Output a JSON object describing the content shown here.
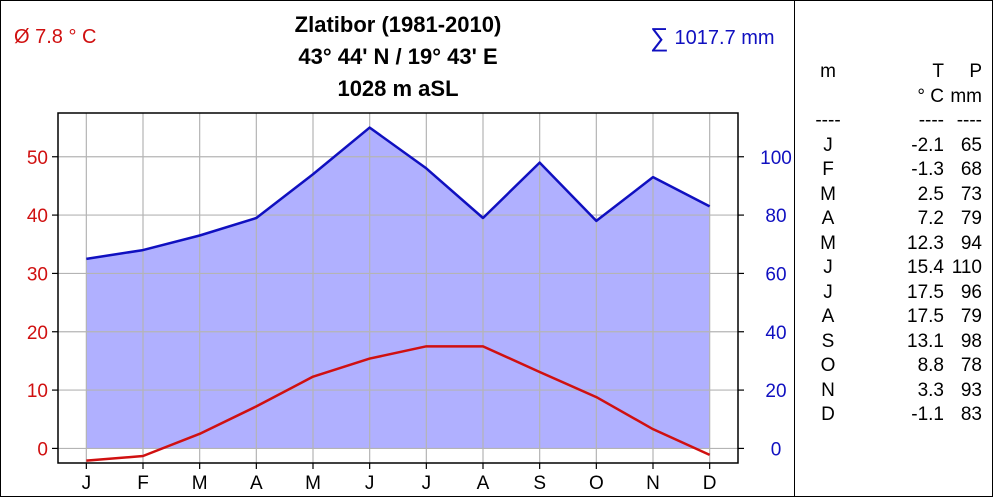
{
  "title": {
    "line1": "Zlatibor (1981-2010)",
    "line2": "43° 44' N / 19° 43' E",
    "line3": "1028 m aSL"
  },
  "mean_temp_label": "Ø 7.8 ° C",
  "sum_symbol": "∑",
  "sum_prec_label": "1017.7 mm",
  "table": {
    "header1": [
      "m",
      "T",
      "P"
    ],
    "header2": [
      "",
      "° C",
      "mm"
    ],
    "separator": [
      "----",
      "----",
      "----"
    ],
    "rows": [
      {
        "m": "J",
        "t": "-2.1",
        "p": "65"
      },
      {
        "m": "F",
        "t": "-1.3",
        "p": "68"
      },
      {
        "m": "M",
        "t": "2.5",
        "p": "73"
      },
      {
        "m": "A",
        "t": "7.2",
        "p": "79"
      },
      {
        "m": "M",
        "t": "12.3",
        "p": "94"
      },
      {
        "m": "J",
        "t": "15.4",
        "p": "110"
      },
      {
        "m": "J",
        "t": "17.5",
        "p": "96"
      },
      {
        "m": "A",
        "t": "17.5",
        "p": "79"
      },
      {
        "m": "S",
        "t": "13.1",
        "p": "98"
      },
      {
        "m": "O",
        "t": "8.8",
        "p": "78"
      },
      {
        "m": "N",
        "t": "3.3",
        "p": "93"
      },
      {
        "m": "D",
        "t": "-1.1",
        "p": "83"
      }
    ]
  },
  "colors": {
    "temperature": "#d01010",
    "precipitation": "#1010c0",
    "precip_fill": "#b0b0ff",
    "grid": "#b4b4b4"
  },
  "chart_data": {
    "type": "line",
    "categories": [
      "J",
      "F",
      "M",
      "A",
      "M",
      "J",
      "J",
      "A",
      "S",
      "O",
      "N",
      "D"
    ],
    "series": [
      {
        "axis": "left",
        "values": [
          -2.1,
          -1.3,
          2.5,
          7.2,
          12.3,
          15.4,
          17.5,
          17.5,
          13.1,
          8.8,
          3.3,
          -1.1
        ]
      },
      {
        "axis": "right",
        "fill": true,
        "values": [
          65,
          68,
          73,
          79,
          94,
          110,
          96,
          79,
          98,
          78,
          93,
          83
        ]
      }
    ],
    "left_axis": {
      "ticks": [
        0,
        10,
        20,
        30,
        40,
        50
      ],
      "ylim": [
        -2.5,
        57.5
      ]
    },
    "right_axis": {
      "ticks": [
        0,
        20,
        40,
        60,
        80,
        100
      ],
      "ylim": [
        -5,
        115
      ]
    },
    "grid": true
  }
}
